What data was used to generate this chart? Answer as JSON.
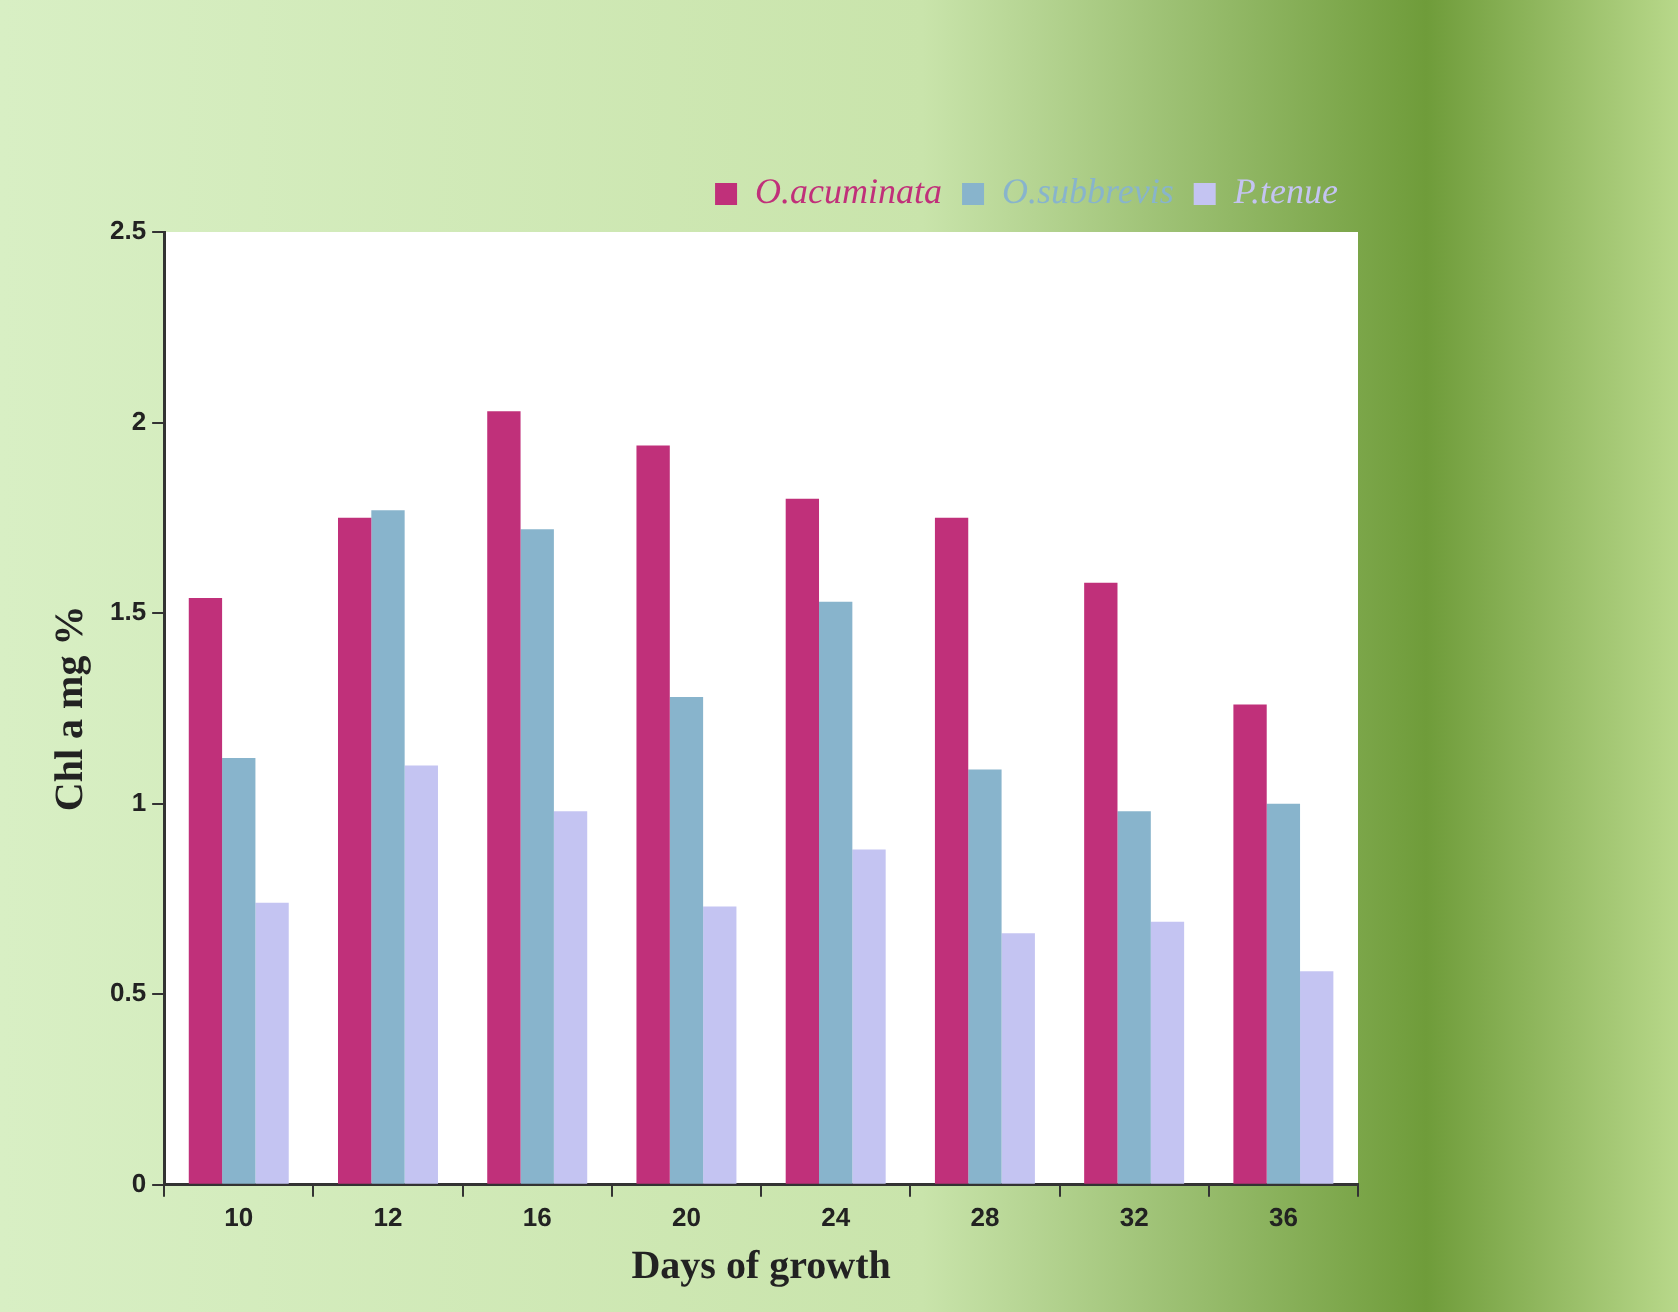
{
  "chart_data": {
    "type": "bar",
    "xlabel": "Days of growth",
    "ylabel": "Chl a mg %",
    "categories": [
      "10",
      "12",
      "16",
      "20",
      "24",
      "28",
      "32",
      "36"
    ],
    "series": [
      {
        "name": "O.acuminata",
        "color": "#c0307a",
        "values": [
          1.54,
          1.75,
          2.03,
          1.94,
          1.8,
          1.75,
          1.58,
          1.26
        ]
      },
      {
        "name": "O.subbrevis",
        "color": "#88b4cc",
        "values": [
          1.12,
          1.77,
          1.72,
          1.28,
          1.53,
          1.09,
          0.98,
          1.0
        ]
      },
      {
        "name": "P.tenue",
        "color": "#c4c4f2",
        "values": [
          0.74,
          1.1,
          0.98,
          0.73,
          0.88,
          0.66,
          0.69,
          0.56
        ]
      }
    ],
    "ylim": [
      0,
      2.5
    ],
    "yticks": [
      0,
      0.5,
      1,
      1.5,
      2,
      2.5
    ],
    "grid": false,
    "legend": "top right"
  }
}
